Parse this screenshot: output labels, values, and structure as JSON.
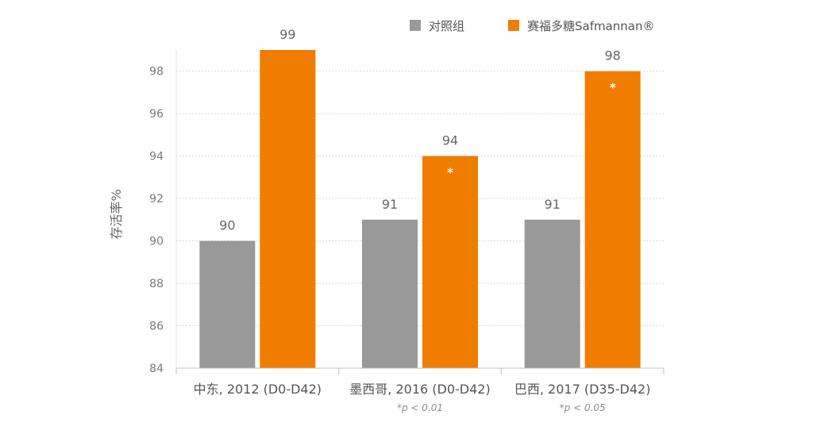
{
  "chart_data": {
    "type": "bar",
    "ylabel": "存活率%",
    "ylim": [
      84,
      99
    ],
    "yticks": [
      84,
      86,
      88,
      90,
      92,
      94,
      96,
      98
    ],
    "grid": true,
    "legend_position": "top-right",
    "categories": [
      "中东, 2012 (D0-D42)",
      "墨西哥, 2016 (D0-D42)",
      "巴西, 2017 (D35-D42)"
    ],
    "footnotes": [
      "",
      "*p < 0.01",
      "*p < 0.05"
    ],
    "series": [
      {
        "name": "对照组",
        "values": [
          90,
          91,
          91
        ],
        "color": "#999999"
      },
      {
        "name": "赛福多糖Safmannan®",
        "values": [
          99,
          94,
          98
        ],
        "color": "#f07d00",
        "significance": [
          "",
          "*",
          "*"
        ]
      }
    ]
  }
}
